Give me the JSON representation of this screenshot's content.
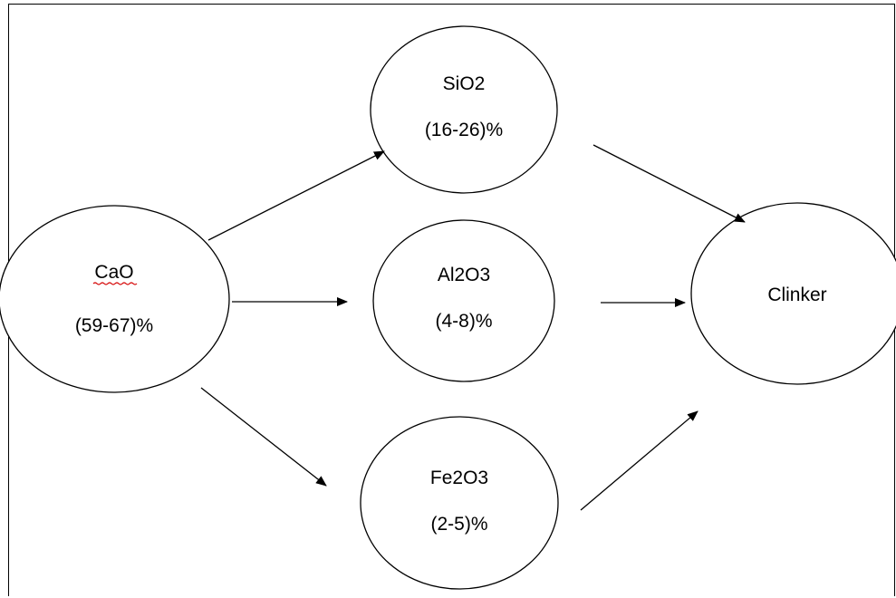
{
  "nodes": {
    "cao": {
      "name": "CaO",
      "range": "(59-67)%"
    },
    "sio2": {
      "name": "SiO2",
      "range": "(16-26)%"
    },
    "al2o3": {
      "name": "Al2O3",
      "range": "(4-8)%"
    },
    "fe2o3": {
      "name": "Fe2O3",
      "range": "(2-5)%"
    },
    "clinker": {
      "name": "Clinker"
    }
  },
  "edges": [
    {
      "from": "CaO",
      "to": "SiO2"
    },
    {
      "from": "CaO",
      "to": "Al2O3"
    },
    {
      "from": "CaO",
      "to": "Fe2O3"
    },
    {
      "from": "SiO2",
      "to": "Clinker"
    },
    {
      "from": "Al2O3",
      "to": "Clinker"
    },
    {
      "from": "Fe2O3",
      "to": "Clinker"
    }
  ]
}
